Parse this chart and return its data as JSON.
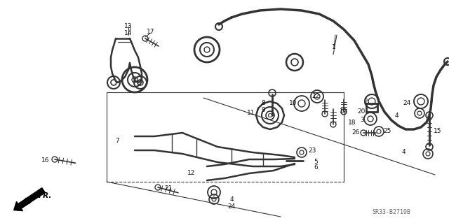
{
  "bg_color": "#ffffff",
  "line_color": "#333333",
  "text_color": "#111111",
  "code": "SR33-B2710B",
  "figsize": [
    6.4,
    3.19
  ],
  "dpi": 100
}
